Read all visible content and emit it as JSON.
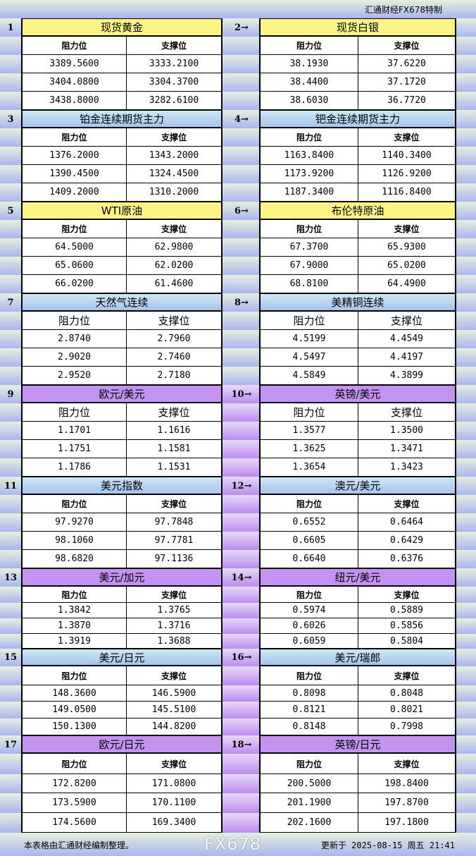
{
  "brand": "汇通财经FX678特制",
  "header_labels": {
    "resistance": "阻力位",
    "support": "支撑位"
  },
  "sections": [
    {
      "row": [
        {
          "num": "1",
          "name": "现货黄金",
          "color": "yellow",
          "resistance": [
            "3389.5600",
            "3404.0800",
            "3438.8000"
          ],
          "support": [
            "3333.2100",
            "3304.3700",
            "3282.6100"
          ]
        },
        {
          "num": "2→",
          "name": "现货白银",
          "color": "yellow",
          "resistance": [
            "38.1930",
            "38.4400",
            "38.6030"
          ],
          "support": [
            "37.6220",
            "37.1720",
            "36.7720"
          ]
        }
      ]
    },
    {
      "row": [
        {
          "num": "3",
          "name": "铂金连续期货主力",
          "color": "blue",
          "resistance": [
            "1376.2000",
            "1390.4500",
            "1409.2000"
          ],
          "support": [
            "1343.2000",
            "1324.4500",
            "1310.2000"
          ]
        },
        {
          "num": "4→",
          "name": "钯金连续期货主力",
          "color": "blue",
          "resistance": [
            "1163.8400",
            "1173.9200",
            "1187.3400"
          ],
          "support": [
            "1140.3400",
            "1126.9200",
            "1116.8400"
          ]
        }
      ]
    },
    {
      "row": [
        {
          "num": "5",
          "name": "WTI原油",
          "color": "yellow",
          "resistance": [
            "64.5000",
            "65.0600",
            "66.0200"
          ],
          "support": [
            "62.9800",
            "62.0200",
            "61.4600"
          ]
        },
        {
          "num": "6→",
          "name": "布伦特原油",
          "color": "yellow",
          "resistance": [
            "67.3700",
            "67.9000",
            "68.8100"
          ],
          "support": [
            "65.9300",
            "65.0200",
            "64.4900"
          ]
        }
      ]
    },
    {
      "row": [
        {
          "num": "7",
          "name": "天然气连续",
          "color": "blue",
          "resistance": [
            "2.8740",
            "2.9020",
            "2.9520"
          ],
          "support": [
            "2.7960",
            "2.7460",
            "2.7180"
          ]
        },
        {
          "num": "8→",
          "name": "美精铜连续",
          "color": "blue",
          "resistance": [
            "4.5199",
            "4.5497",
            "4.5849"
          ],
          "support": [
            "4.4549",
            "4.4197",
            "4.3899"
          ]
        }
      ]
    },
    {
      "row": [
        {
          "num": "9",
          "name": "欧元/美元",
          "color": "purple",
          "resistance": [
            "1.1701",
            "1.1751",
            "1.1786"
          ],
          "support": [
            "1.1616",
            "1.1581",
            "1.1531"
          ]
        },
        {
          "num": "10→",
          "name": "英镑/美元",
          "color": "purple",
          "resistance": [
            "1.3577",
            "1.3625",
            "1.3654"
          ],
          "support": [
            "1.3500",
            "1.3471",
            "1.3423"
          ]
        }
      ]
    },
    {
      "row": [
        {
          "num": "11",
          "name": "美元指数",
          "color": "blue",
          "resistance": [
            "97.9270",
            "98.1060",
            "98.6820"
          ],
          "support": [
            "97.7848",
            "97.7781",
            "97.1136"
          ]
        },
        {
          "num": "12→",
          "name": "澳元/美元",
          "color": "blue",
          "resistance": [
            "0.6552",
            "0.6605",
            "0.6640"
          ],
          "support": [
            "0.6464",
            "0.6429",
            "0.6376"
          ]
        }
      ]
    },
    {
      "row": [
        {
          "num": "13",
          "name": "美元/加元",
          "color": "purple",
          "resistance": [
            "1.3842",
            "1.3870",
            "1.3919"
          ],
          "support": [
            "1.3765",
            "1.3716",
            "1.3688"
          ]
        },
        {
          "num": "14→",
          "name": "纽元/美元",
          "color": "purple",
          "resistance": [
            "0.5974",
            "0.6026",
            "0.6059"
          ],
          "support": [
            "0.5889",
            "0.5856",
            "0.5804"
          ]
        }
      ]
    },
    {
      "row": [
        {
          "num": "15",
          "name": "美元/日元",
          "color": "blue",
          "resistance": [
            "148.3600",
            "149.0500",
            "150.1300"
          ],
          "support": [
            "146.5900",
            "145.5100",
            "144.8200"
          ]
        },
        {
          "num": "16→",
          "name": "美元/瑞郎",
          "color": "blue",
          "resistance": [
            "0.8098",
            "0.8121",
            "0.8148"
          ],
          "support": [
            "0.8048",
            "0.8021",
            "0.7998"
          ]
        }
      ]
    },
    {
      "row": [
        {
          "num": "17",
          "name": "欧元/日元",
          "color": "purple",
          "resistance": [
            "172.8200",
            "173.5900",
            "174.5600"
          ],
          "support": [
            "171.0800",
            "170.1100",
            "169.3400"
          ]
        },
        {
          "num": "18→",
          "name": "英镑/日元",
          "color": "purple",
          "resistance": [
            "200.5000",
            "201.1900",
            "202.1600"
          ],
          "support": [
            "198.8400",
            "197.8700",
            "197.1800"
          ]
        }
      ]
    }
  ],
  "footer": {
    "note": "本表格由汇通财经编制整理。",
    "updated": "更新于 2025-08-15 周五 21:41"
  },
  "watermark": "FX678"
}
